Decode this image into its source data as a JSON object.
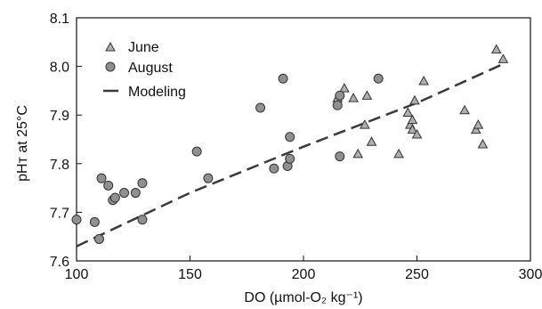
{
  "chart_data": {
    "type": "scatter",
    "xlabel": "DO (µmol-O₂ kg⁻¹)",
    "ylabel": "pHᴛ at 25°C",
    "xlim": [
      100,
      300
    ],
    "ylim": [
      7.6,
      8.1
    ],
    "xticks": [
      "100",
      "150",
      "200",
      "250",
      "300"
    ],
    "yticks": [
      "7.6",
      "7.7",
      "7.8",
      "7.9",
      "8.0",
      "8.1"
    ],
    "grid": false,
    "legend_position": "top-left",
    "series": [
      {
        "name": "June",
        "marker": "triangle",
        "color": "#b0b0b0",
        "points": [
          [
            215,
            7.935
          ],
          [
            218,
            7.955
          ],
          [
            222,
            7.935
          ],
          [
            224,
            7.82
          ],
          [
            227,
            7.88
          ],
          [
            228,
            7.94
          ],
          [
            230,
            7.845
          ],
          [
            242,
            7.82
          ],
          [
            246,
            7.905
          ],
          [
            247,
            7.88
          ],
          [
            248,
            7.89
          ],
          [
            248,
            7.87
          ],
          [
            249,
            7.93
          ],
          [
            250,
            7.86
          ],
          [
            253,
            7.97
          ],
          [
            271,
            7.91
          ],
          [
            276,
            7.87
          ],
          [
            277,
            7.88
          ],
          [
            279,
            7.84
          ],
          [
            285,
            8.035
          ],
          [
            288,
            8.015
          ]
        ]
      },
      {
        "name": "August",
        "marker": "circle",
        "color": "#909090",
        "points": [
          [
            100,
            7.685
          ],
          [
            108,
            7.68
          ],
          [
            110,
            7.645
          ],
          [
            111,
            7.77
          ],
          [
            114,
            7.755
          ],
          [
            116,
            7.725
          ],
          [
            117,
            7.73
          ],
          [
            121,
            7.74
          ],
          [
            126,
            7.74
          ],
          [
            129,
            7.76
          ],
          [
            129,
            7.685
          ],
          [
            153,
            7.825
          ],
          [
            158,
            7.77
          ],
          [
            181,
            7.915
          ],
          [
            187,
            7.79
          ],
          [
            191,
            7.975
          ],
          [
            193,
            7.795
          ],
          [
            194,
            7.81
          ],
          [
            194,
            7.855
          ],
          [
            215,
            7.92
          ],
          [
            216,
            7.815
          ],
          [
            216,
            7.94
          ],
          [
            233,
            7.975
          ]
        ]
      },
      {
        "name": "Modeling",
        "marker": "dashed-line",
        "color": "#3a3a3a",
        "points": [
          [
            100,
            7.63
          ],
          [
            150,
            7.74
          ],
          [
            200,
            7.835
          ],
          [
            250,
            7.925
          ],
          [
            288,
            8.005
          ]
        ]
      }
    ]
  }
}
